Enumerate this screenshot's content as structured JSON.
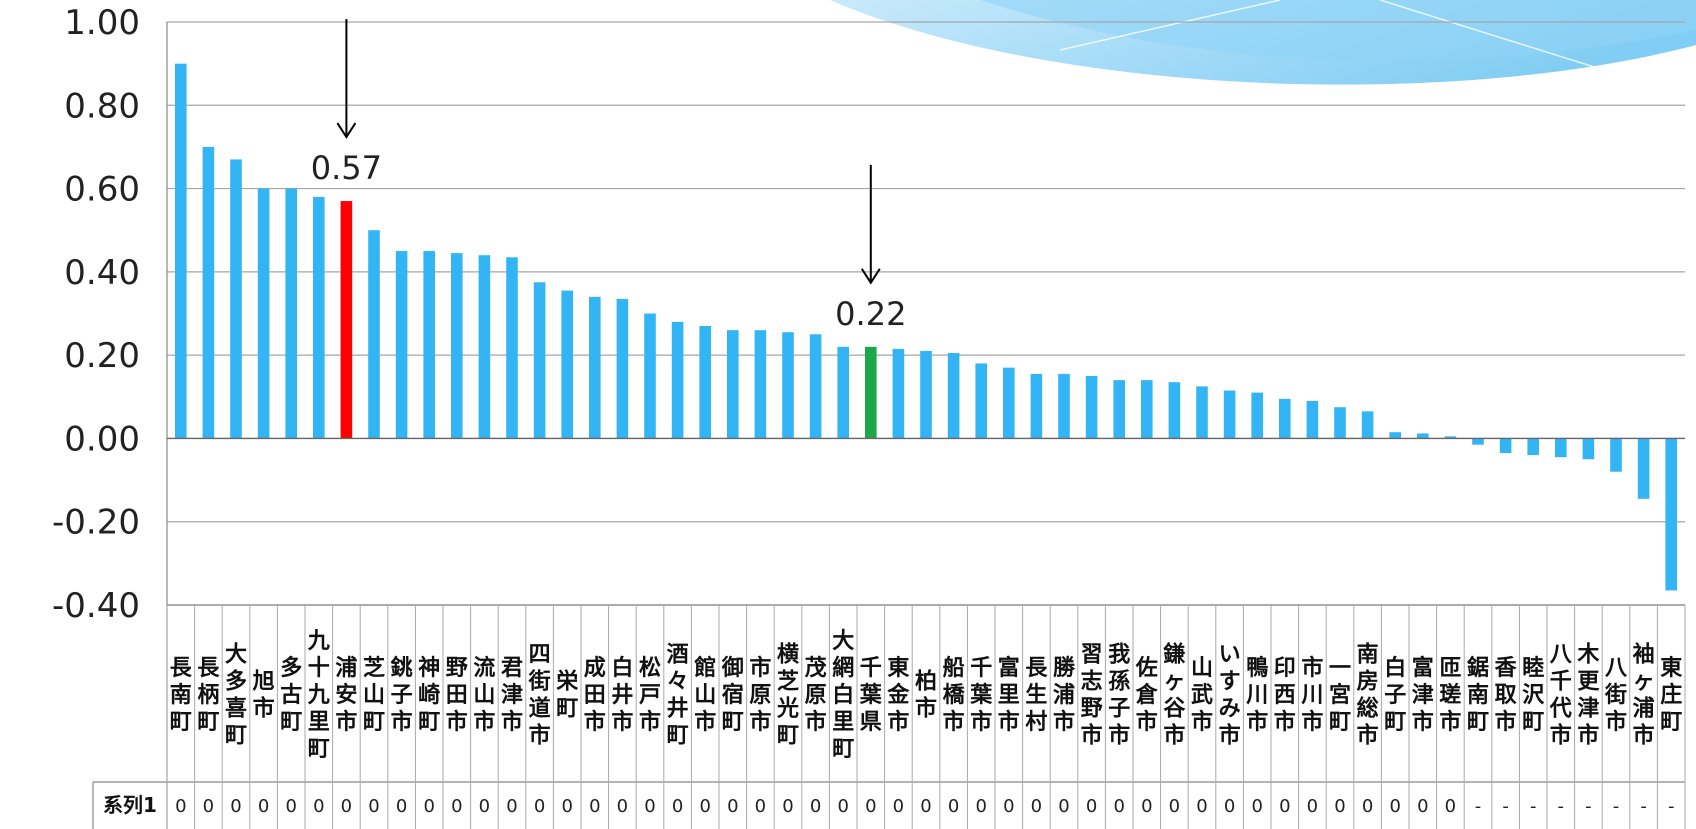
{
  "chart_data": {
    "type": "bar",
    "ylim": [
      -0.4,
      1.0
    ],
    "yticks": [
      "1.00",
      "0.80",
      "0.60",
      "0.40",
      "0.20",
      "0.00",
      "-0.20",
      "-0.40"
    ],
    "ytick_values": [
      1.0,
      0.8,
      0.6,
      0.4,
      0.2,
      0.0,
      -0.2,
      -0.4
    ],
    "grid": true,
    "bar_color": "#33b5f5",
    "highlight_colors": {
      "浦安市": "#ff0000",
      "千葉県": "#1aa84a"
    },
    "categories": [
      "長南町",
      "長柄町",
      "大多喜町",
      "旭市",
      "多古町",
      "九十九里町",
      "浦安市",
      "芝山町",
      "銚子市",
      "神崎町",
      "野田市",
      "流山市",
      "君津市",
      "四街道市",
      "栄町",
      "成田市",
      "白井市",
      "松戸市",
      "酒々井町",
      "館山市",
      "御宿町",
      "市原市",
      "横芝光町",
      "茂原市",
      "大網白里町",
      "千葉県",
      "東金市",
      "柏市",
      "船橋市",
      "千葉市",
      "富里市",
      "長生村",
      "勝浦市",
      "習志野市",
      "我孫子市",
      "佐倉市",
      "鎌ヶ谷市",
      "山武市",
      "いすみ市",
      "鴨川市",
      "印西市",
      "市川市",
      "一宮町",
      "南房総市",
      "白子町",
      "富津市",
      "匝瑳市",
      "鋸南町",
      "香取市",
      "睦沢町",
      "八千代市",
      "木更津市",
      "八街市",
      "袖ヶ浦市",
      "東庄町"
    ],
    "series": [
      {
        "name": "系列1",
        "values": [
          0.9,
          0.7,
          0.67,
          0.6,
          0.6,
          0.58,
          0.57,
          0.5,
          0.45,
          0.45,
          0.445,
          0.44,
          0.435,
          0.375,
          0.355,
          0.34,
          0.335,
          0.3,
          0.28,
          0.27,
          0.26,
          0.26,
          0.255,
          0.25,
          0.22,
          0.22,
          0.215,
          0.21,
          0.205,
          0.18,
          0.17,
          0.155,
          0.155,
          0.15,
          0.14,
          0.14,
          0.135,
          0.125,
          0.115,
          0.11,
          0.095,
          0.09,
          0.075,
          0.065,
          0.015,
          0.012,
          0.005,
          -0.015,
          -0.035,
          -0.04,
          -0.045,
          -0.05,
          -0.08,
          -0.145,
          -0.365
        ],
        "table_values": [
          "0",
          "0",
          "0",
          "0",
          "0",
          "0",
          "0",
          "0",
          "0",
          "0",
          "0",
          "0",
          "0",
          "0",
          "0",
          "0",
          "0",
          "0",
          "0",
          "0",
          "0",
          "0",
          "0",
          "0",
          "0",
          "0",
          "0",
          "0",
          "0",
          "0",
          "0",
          "0",
          "0",
          "0",
          "0",
          "0",
          "0",
          "0",
          "0",
          "0",
          "0",
          "0",
          "0",
          "0",
          "0",
          "0",
          "0",
          "-",
          "-",
          "-",
          "-",
          "-",
          "-",
          "-",
          "-"
        ]
      }
    ],
    "annotations": [
      {
        "category": "浦安市",
        "label": "0.57",
        "value": 0.57
      },
      {
        "category": "千葉県",
        "label": "0.22",
        "value": 0.22
      }
    ]
  }
}
